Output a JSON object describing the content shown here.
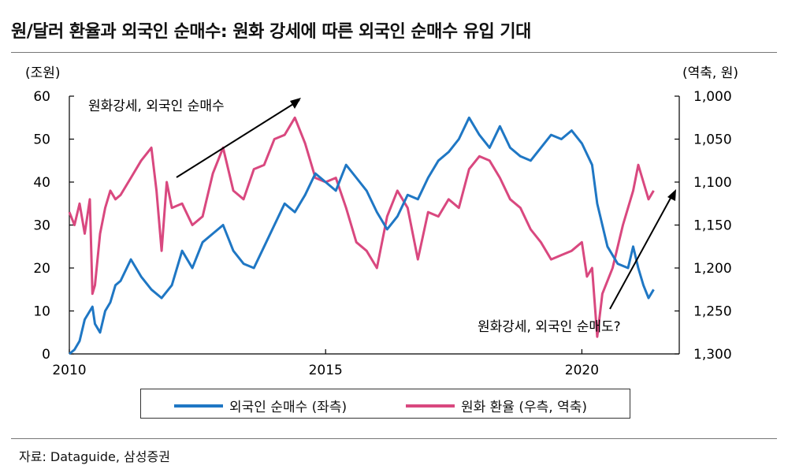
{
  "title": "원/달러 환율과 외국인 순매수: 원화 강세에 따른 외국인 순매수 유입 기대",
  "source": "자료: Dataguide, 삼성증권",
  "chart_data": {
    "type": "line",
    "left_axis_unit": "(조원)",
    "right_axis_unit": "(역축, 원)",
    "x_ticks": [
      "2010",
      "2015",
      "2020"
    ],
    "x_range": [
      2010,
      2021.9
    ],
    "left_ticks": [
      "0",
      "10",
      "20",
      "30",
      "40",
      "50",
      "60"
    ],
    "right_ticks": [
      "1,000",
      "1,050",
      "1,100",
      "1,150",
      "1,200",
      "1,250",
      "1,300"
    ],
    "ylim_left": [
      0,
      60
    ],
    "ylim_right": [
      1300,
      1000
    ],
    "right_axis_inverted": true,
    "grid": false,
    "annotations": [
      {
        "text": "원화강세, 외국인 순매수"
      },
      {
        "text": "원화강세, 외국인 순매도?"
      }
    ],
    "series": [
      {
        "name": "외국인 순매수 (좌측)",
        "axis": "left",
        "color": "#1f77c4",
        "x": [
          2010.0,
          2010.1,
          2010.2,
          2010.3,
          2010.45,
          2010.5,
          2010.6,
          2010.7,
          2010.8,
          2010.9,
          2011.0,
          2011.2,
          2011.4,
          2011.6,
          2011.8,
          2012.0,
          2012.2,
          2012.4,
          2012.6,
          2012.8,
          2013.0,
          2013.2,
          2013.4,
          2013.6,
          2013.8,
          2014.0,
          2014.2,
          2014.4,
          2014.6,
          2014.8,
          2015.0,
          2015.2,
          2015.4,
          2015.6,
          2015.8,
          2016.0,
          2016.2,
          2016.4,
          2016.6,
          2016.8,
          2017.0,
          2017.2,
          2017.4,
          2017.6,
          2017.8,
          2018.0,
          2018.2,
          2018.4,
          2018.6,
          2018.8,
          2019.0,
          2019.2,
          2019.4,
          2019.6,
          2019.8,
          2020.0,
          2020.2,
          2020.3,
          2020.5,
          2020.7,
          2020.9,
          2021.0,
          2021.1,
          2021.2,
          2021.3,
          2021.4
        ],
        "values": [
          0,
          1,
          3,
          8,
          11,
          7,
          5,
          10,
          12,
          16,
          17,
          22,
          18,
          15,
          13,
          16,
          24,
          20,
          26,
          28,
          30,
          24,
          21,
          20,
          25,
          30,
          35,
          33,
          37,
          42,
          40,
          38,
          44,
          41,
          38,
          33,
          29,
          32,
          37,
          36,
          41,
          45,
          47,
          50,
          55,
          51,
          48,
          53,
          48,
          46,
          45,
          48,
          51,
          50,
          52,
          49,
          44,
          35,
          25,
          21,
          20,
          25,
          20,
          16,
          13,
          15
        ]
      },
      {
        "name": "원화 환율 (우측, 역축)",
        "axis": "right",
        "color": "#d9487f",
        "x": [
          2010.0,
          2010.1,
          2010.2,
          2010.3,
          2010.4,
          2010.45,
          2010.5,
          2010.6,
          2010.7,
          2010.8,
          2010.9,
          2011.0,
          2011.2,
          2011.4,
          2011.6,
          2011.7,
          2011.8,
          2011.9,
          2012.0,
          2012.2,
          2012.4,
          2012.6,
          2012.8,
          2013.0,
          2013.2,
          2013.4,
          2013.6,
          2013.8,
          2014.0,
          2014.2,
          2014.4,
          2014.5,
          2014.6,
          2014.8,
          2015.0,
          2015.2,
          2015.4,
          2015.6,
          2015.8,
          2016.0,
          2016.2,
          2016.4,
          2016.6,
          2016.8,
          2017.0,
          2017.2,
          2017.4,
          2017.6,
          2017.8,
          2018.0,
          2018.2,
          2018.4,
          2018.6,
          2018.8,
          2019.0,
          2019.2,
          2019.4,
          2019.6,
          2019.8,
          2020.0,
          2020.1,
          2020.2,
          2020.3,
          2020.4,
          2020.6,
          2020.8,
          2021.0,
          2021.1,
          2021.2,
          2021.3,
          2021.4
        ],
        "values": [
          1135,
          1150,
          1125,
          1160,
          1120,
          1230,
          1220,
          1160,
          1130,
          1110,
          1120,
          1115,
          1095,
          1075,
          1060,
          1110,
          1180,
          1100,
          1130,
          1125,
          1150,
          1140,
          1090,
          1060,
          1110,
          1120,
          1085,
          1080,
          1050,
          1045,
          1025,
          1040,
          1055,
          1095,
          1100,
          1095,
          1130,
          1170,
          1180,
          1200,
          1140,
          1110,
          1130,
          1190,
          1135,
          1140,
          1120,
          1130,
          1085,
          1070,
          1075,
          1095,
          1120,
          1130,
          1155,
          1170,
          1190,
          1185,
          1180,
          1170,
          1210,
          1200,
          1280,
          1230,
          1200,
          1150,
          1110,
          1080,
          1100,
          1120,
          1110
        ]
      }
    ]
  }
}
